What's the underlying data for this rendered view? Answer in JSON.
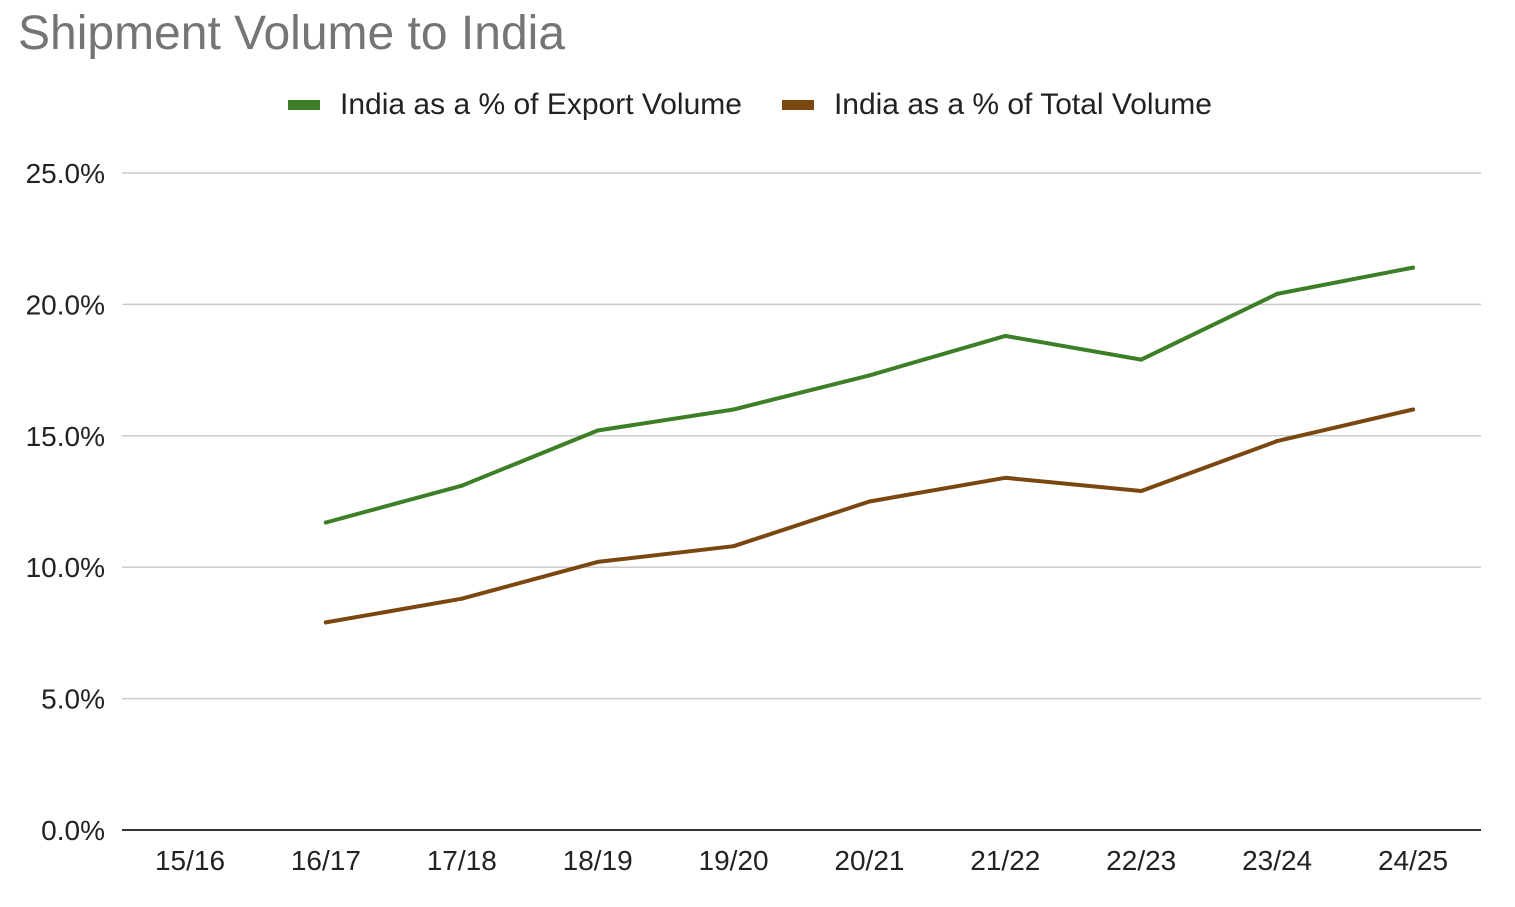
{
  "chart_data": {
    "type": "line",
    "title": "Shipment Volume to India",
    "xlabel": "",
    "ylabel": "",
    "categories": [
      "15/16",
      "16/17",
      "17/18",
      "18/19",
      "19/20",
      "20/21",
      "21/22",
      "22/23",
      "23/24",
      "24/25"
    ],
    "ylim": [
      0,
      25
    ],
    "yticks": [
      0,
      5,
      10,
      15,
      20,
      25
    ],
    "ytick_labels": [
      "0.0%",
      "5.0%",
      "10.0%",
      "15.0%",
      "20.0%",
      "25.0%"
    ],
    "grid": true,
    "legend_position": "top-center",
    "series": [
      {
        "name": "India as a % of Export Volume",
        "color": "#3d7f27",
        "values": [
          null,
          11.7,
          13.1,
          15.2,
          16.0,
          17.3,
          18.8,
          17.9,
          20.4,
          21.4
        ]
      },
      {
        "name": "India as a % of Total Volume",
        "color": "#7b4710",
        "values": [
          null,
          7.9,
          8.8,
          10.2,
          10.8,
          12.5,
          13.4,
          12.9,
          14.8,
          16.0
        ]
      }
    ]
  }
}
